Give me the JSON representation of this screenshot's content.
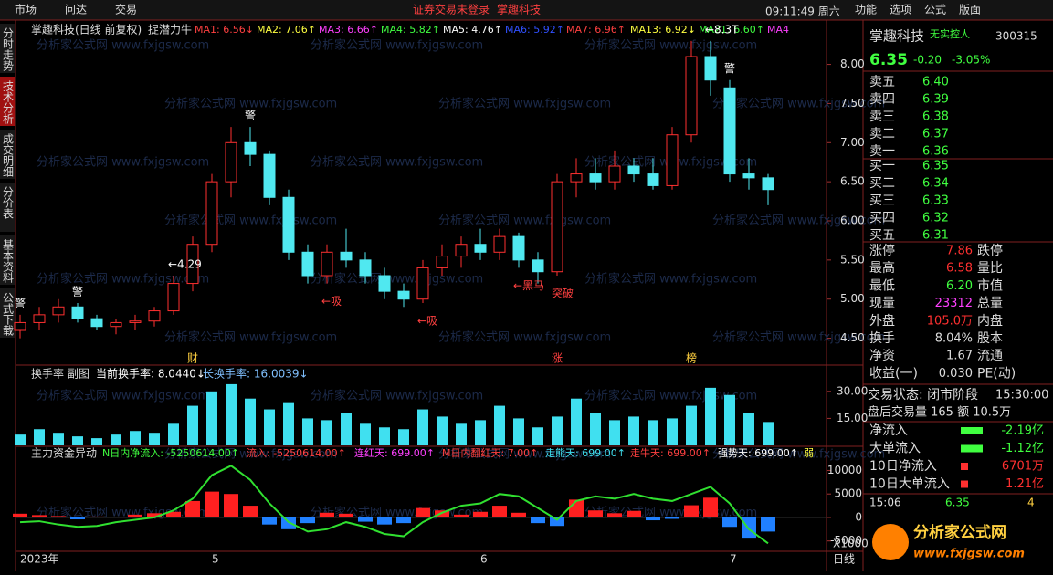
{
  "menu": {
    "left": [
      "市场",
      "问达",
      "交易"
    ],
    "notice": "证券交易未登录",
    "notice_stock": "掌趣科技",
    "time": "09:11:49 周六",
    "right": [
      "功能",
      "选项",
      "公式",
      "版面"
    ]
  },
  "side_tabs": [
    "分时走势",
    "技术分析",
    "成交明细",
    "分价表",
    "基本资料",
    "公式下载"
  ],
  "watermark": "分析家公式网 www.fxjgsw.com",
  "chart_data": [
    {
      "type": "candlestick",
      "title": "掌趣科技(日线 前复权)",
      "indicator": "捉潜力牛",
      "ma_legend": [
        {
          "label": "MA1: 6.56↓",
          "color": "#ff4040"
        },
        {
          "label": "MA2: 7.06↑",
          "color": "#ffff40"
        },
        {
          "label": "MA3: 6.66↑",
          "color": "#ff40ff"
        },
        {
          "label": "MA4: 5.82↑",
          "color": "#40ff40"
        },
        {
          "label": "MA5: 4.76↑",
          "color": "#ffffff"
        },
        {
          "label": "MA6: 5.92↑",
          "color": "#3050ff"
        },
        {
          "label": "MA7: 6.96↑",
          "color": "#ff4040"
        },
        {
          "label": "MA13: 6.92↓",
          "color": "#ffff40"
        },
        {
          "label": "MA21: 6.60↑",
          "color": "#40ff40"
        },
        {
          "label": "MA4",
          "color": "#ff40ff"
        }
      ],
      "ylim": [
        4.18,
        8.52
      ],
      "yticks": [
        {
          "value": 8,
          "label": "8.00"
        },
        {
          "value": 7.5,
          "label": "7.50"
        },
        {
          "value": 7,
          "label": "7.00"
        },
        {
          "value": 6.5,
          "label": "6.50"
        },
        {
          "value": 6,
          "label": "6.00"
        },
        {
          "value": 5.5,
          "label": "5.50"
        },
        {
          "value": 5,
          "label": "5.00"
        },
        {
          "value": 4.5,
          "label": "4.50"
        }
      ],
      "candles": [
        [
          4.6,
          4.8,
          4.5,
          4.7
        ],
        [
          4.7,
          4.9,
          4.6,
          4.8
        ],
        [
          4.8,
          5.0,
          4.7,
          4.9
        ],
        [
          4.9,
          4.95,
          4.7,
          4.75
        ],
        [
          4.75,
          4.8,
          4.6,
          4.65
        ],
        [
          4.65,
          4.75,
          4.55,
          4.7
        ],
        [
          4.7,
          4.8,
          4.6,
          4.72
        ],
        [
          4.72,
          4.9,
          4.65,
          4.85
        ],
        [
          4.85,
          5.3,
          4.8,
          5.2
        ],
        [
          5.2,
          5.8,
          5.1,
          5.7
        ],
        [
          5.7,
          6.6,
          5.6,
          6.5
        ],
        [
          6.5,
          7.2,
          6.3,
          7.0
        ],
        [
          7.0,
          7.2,
          6.7,
          6.85
        ],
        [
          6.85,
          6.9,
          6.2,
          6.3
        ],
        [
          6.3,
          6.4,
          5.5,
          5.6
        ],
        [
          5.6,
          5.7,
          5.2,
          5.3
        ],
        [
          5.3,
          5.7,
          5.2,
          5.6
        ],
        [
          5.6,
          5.9,
          5.4,
          5.5
        ],
        [
          5.5,
          5.6,
          5.2,
          5.3
        ],
        [
          5.3,
          5.4,
          5.0,
          5.1
        ],
        [
          5.1,
          5.2,
          4.9,
          5.0
        ],
        [
          5.0,
          5.5,
          4.95,
          5.4
        ],
        [
          5.4,
          5.7,
          5.3,
          5.55
        ],
        [
          5.55,
          5.8,
          5.4,
          5.7
        ],
        [
          5.7,
          5.9,
          5.5,
          5.6
        ],
        [
          5.6,
          5.9,
          5.5,
          5.8
        ],
        [
          5.8,
          5.85,
          5.4,
          5.5
        ],
        [
          5.5,
          5.6,
          5.2,
          5.35
        ],
        [
          5.35,
          6.6,
          5.3,
          6.5
        ],
        [
          6.5,
          6.8,
          6.3,
          6.6
        ],
        [
          6.6,
          6.8,
          6.4,
          6.5
        ],
        [
          6.5,
          6.9,
          6.4,
          6.7
        ],
        [
          6.7,
          6.8,
          6.5,
          6.6
        ],
        [
          6.6,
          6.8,
          6.4,
          6.45
        ],
        [
          6.45,
          7.2,
          6.4,
          7.1
        ],
        [
          7.1,
          8.3,
          7.0,
          8.1
        ],
        [
          8.1,
          8.3,
          7.6,
          7.8
        ],
        [
          7.7,
          7.8,
          6.5,
          6.6
        ],
        [
          6.6,
          6.8,
          6.4,
          6.55
        ],
        [
          6.55,
          6.6,
          6.2,
          6.4
        ]
      ],
      "x_labels": [
        {
          "index": 0,
          "label": "2023年"
        },
        {
          "index": 10,
          "label": "5"
        },
        {
          "index": 24,
          "label": "6"
        },
        {
          "index": 37,
          "label": "7"
        }
      ],
      "annotations": [
        {
          "index": 0,
          "text": "警"
        },
        {
          "index": 3,
          "text": "警"
        },
        {
          "index": 12,
          "text": "警"
        },
        {
          "index": 16,
          "text": "←吸"
        },
        {
          "index": 21,
          "text": "←吸"
        },
        {
          "index": 26,
          "text": "←黑马"
        },
        {
          "index": 28,
          "text": "突破"
        },
        {
          "index": 36,
          "text": "←8.3T"
        },
        {
          "index": 37,
          "text": "警"
        },
        {
          "index": 8,
          "text": "←4.29"
        },
        {
          "index": 9,
          "text": "财"
        },
        {
          "index": 28,
          "text": "涨"
        },
        {
          "index": 35,
          "text": "榜"
        }
      ]
    },
    {
      "type": "bar",
      "title": "换手率 副图",
      "legend": [
        {
          "label": "当前换手率: 8.0440↓",
          "color": "#ffffff"
        },
        {
          "label": "长换手率: 16.0039↓",
          "color": "#80c0ff"
        }
      ],
      "color": "#40e0f0",
      "ylim": [
        0,
        37
      ],
      "yticks": [
        {
          "value": 30,
          "label": "30.00"
        },
        {
          "value": 15,
          "label": "15.00"
        }
      ],
      "values": [
        6,
        9,
        7,
        5,
        4,
        6,
        8,
        7,
        12,
        22,
        30,
        34,
        26,
        20,
        24,
        15,
        14,
        18,
        12,
        10,
        9,
        20,
        16,
        12,
        14,
        22,
        15,
        10,
        16,
        26,
        18,
        14,
        16,
        14,
        15,
        22,
        32,
        28,
        18,
        13
      ]
    },
    {
      "type": "bar-line",
      "title": "主力资金异动",
      "legend": [
        {
          "label": "N日内净流入: -5250614.00↑",
          "color": "#40ff40"
        },
        {
          "label": "流入: -5250614.00↑",
          "color": "#ff4040"
        },
        {
          "label": "连红天: 699.00↑",
          "color": "#ff40ff"
        },
        {
          "label": "M日内翻红天: 7.00↑",
          "color": "#ff4040"
        },
        {
          "label": "走熊天: 699.00↑",
          "color": "#40e0f0"
        },
        {
          "label": "走牛天: 699.00↑",
          "color": "#ff4040"
        },
        {
          "label": "强势天: 699.00↑",
          "color": "#ffffff"
        },
        {
          "label": "弱",
          "color": "#ffff40"
        }
      ],
      "ylim": [
        -7000,
        13000
      ],
      "yticks": [
        10000,
        5000,
        0,
        -5000
      ],
      "unit_label": "X1000",
      "period_label": "日线",
      "series": [
        {
          "color": "#ff2020",
          "values": [
            800,
            500,
            300,
            -400,
            200,
            100,
            600,
            900,
            1200,
            3500,
            5500,
            5000,
            2500,
            -1500,
            -2500,
            -1200,
            1000,
            800,
            -900,
            -1500,
            -1200,
            2000,
            1500,
            600,
            1200,
            2500,
            1000,
            -1200,
            -1800,
            3800,
            1500,
            900,
            1400,
            -600,
            -300,
            2600,
            4200,
            -2000,
            -4500,
            -3000
          ]
        },
        {
          "color": "#30e030",
          "values": [
            -1000,
            -800,
            -1500,
            -2000,
            -1800,
            -1000,
            -500,
            0,
            1500,
            4000,
            9000,
            11000,
            8000,
            3000,
            -1000,
            -3000,
            -2500,
            -1000,
            -2000,
            -3500,
            -4000,
            -1000,
            1000,
            2500,
            3000,
            5000,
            4500,
            2000,
            -500,
            3500,
            4500,
            4000,
            5000,
            4000,
            3500,
            5000,
            6500,
            3000,
            -2500,
            -5500
          ]
        }
      ]
    }
  ],
  "quote": {
    "name": "掌趣科技",
    "tag": "无实控人",
    "code": "300315",
    "price": "6.35",
    "change": "-0.20",
    "pct": "-3.05%",
    "book": [
      [
        "卖五",
        "6.40"
      ],
      [
        "卖四",
        "6.39"
      ],
      [
        "卖三",
        "6.38"
      ],
      [
        "卖二",
        "6.37"
      ],
      [
        "卖一",
        "6.36"
      ],
      [
        "买一",
        "6.35"
      ],
      [
        "买二",
        "6.34"
      ],
      [
        "买三",
        "6.33"
      ],
      [
        "买四",
        "6.32"
      ],
      [
        "买五",
        "6.31"
      ]
    ],
    "stats": [
      [
        "涨停",
        "7.86",
        "跌停"
      ],
      [
        "最高",
        "6.58",
        "量比"
      ],
      [
        "最低",
        "6.20",
        "市值"
      ],
      [
        "现量",
        "23312",
        "总量"
      ],
      [
        "外盘",
        "105.0万",
        "内盘"
      ],
      [
        "换手",
        "8.04%",
        "股本"
      ],
      [
        "净资",
        "1.67",
        "流通"
      ],
      [
        "收益(一)",
        "0.030",
        "PE(动)"
      ]
    ],
    "status": [
      "交易状态: 闭市阶段",
      "15:30:00"
    ],
    "after": "盘后交易量 165 额 10.5万",
    "flows": [
      [
        "净流入",
        "-2.19亿"
      ],
      [
        "大单流入",
        "-1.12亿"
      ],
      [
        "10日净流入",
        "6701万"
      ],
      [
        "10日大单流入",
        "1.21亿"
      ]
    ],
    "tick": [
      "15:06",
      "6.35",
      "4"
    ]
  },
  "logo": {
    "name": "分析家公式网",
    "url": "www.fxjgsw.com"
  }
}
